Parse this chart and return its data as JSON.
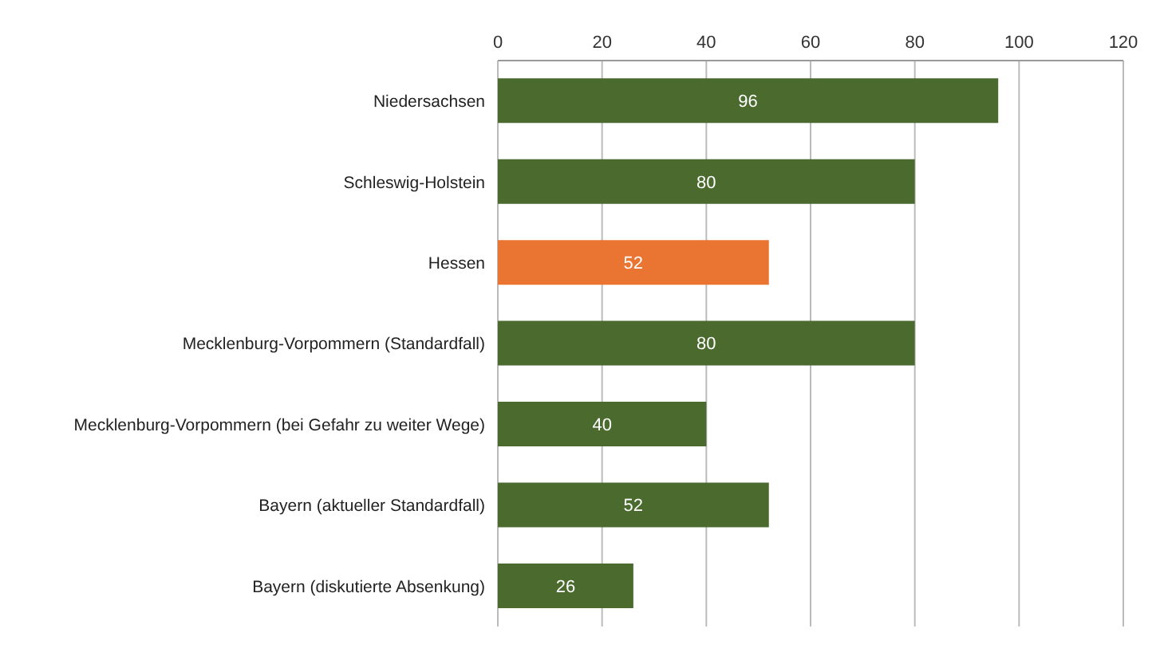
{
  "chart_data": {
    "type": "bar",
    "orientation": "horizontal",
    "categories": [
      "Niedersachsen",
      "Schleswig-Holstein",
      "Hessen",
      "Mecklenburg-Vorpommern (Standardfall)",
      "Mecklenburg-Vorpommern (bei Gefahr zu weiter Wege)",
      "Bayern (aktueller Standardfall)",
      "Bayern (diskutierte Absenkung)"
    ],
    "values": [
      96,
      80,
      52,
      80,
      40,
      52,
      26
    ],
    "colors": [
      "#4a6a2e",
      "#4a6a2e",
      "#ea7432",
      "#4a6a2e",
      "#4a6a2e",
      "#4a6a2e",
      "#4a6a2e"
    ],
    "xlim": [
      0,
      120
    ],
    "xticks": [
      0,
      20,
      40,
      60,
      80,
      100,
      120
    ],
    "grid": "x",
    "data_labels": true
  }
}
